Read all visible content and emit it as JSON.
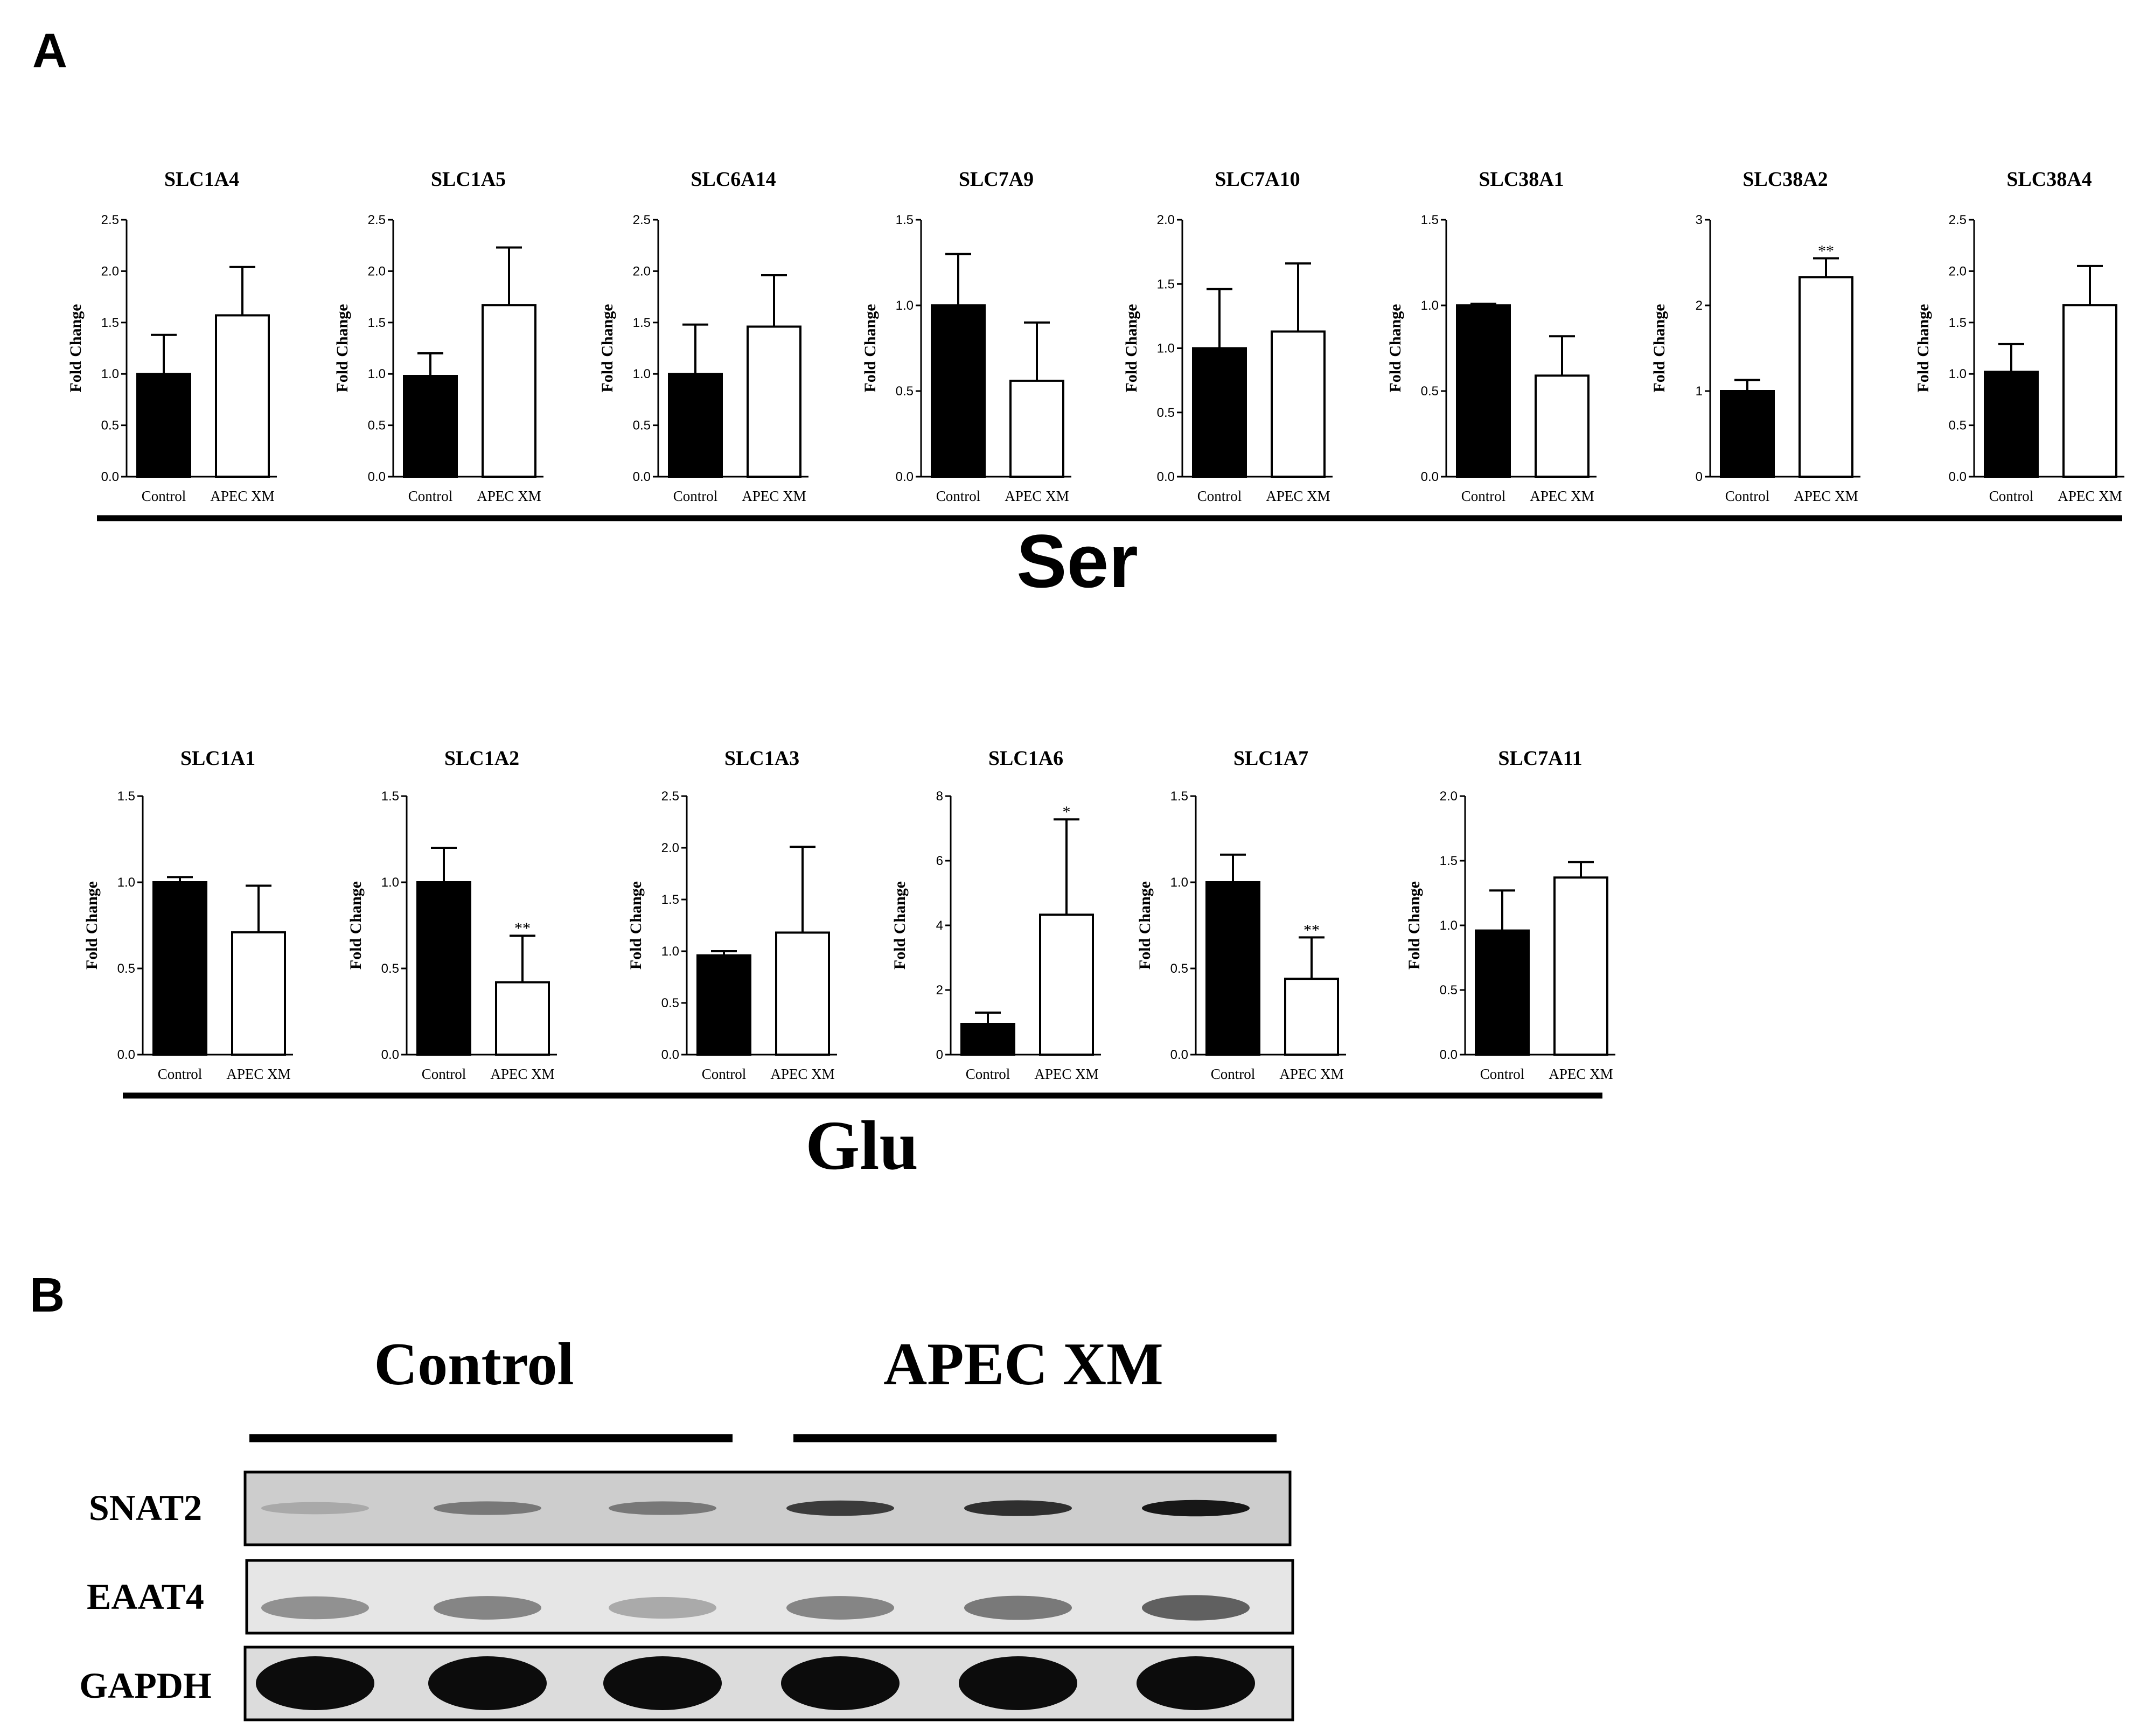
{
  "panels": {
    "a_label": "A",
    "b_label": "B"
  },
  "groups": {
    "ser_label": "Ser",
    "glu_label": "Glu"
  },
  "common": {
    "ylabel": "Fold Change",
    "categories": [
      "Control",
      "APEC XM"
    ],
    "bar_colors": [
      "#000000",
      "#ffffff"
    ]
  },
  "chart_data": [
    {
      "type": "bar",
      "title": "SLC1A4",
      "group": "Ser",
      "ylim": [
        0,
        2.5
      ],
      "yticks": [
        "0.0",
        "0.5",
        "1.0",
        "1.5",
        "2.0",
        "2.5"
      ],
      "categories": [
        "Control",
        "APEC XM"
      ],
      "values": [
        1.0,
        1.57
      ],
      "errors": [
        0.38,
        0.47
      ],
      "significance": [
        "",
        ""
      ]
    },
    {
      "type": "bar",
      "title": "SLC1A5",
      "group": "Ser",
      "ylim": [
        0,
        2.5
      ],
      "yticks": [
        "0.0",
        "0.5",
        "1.0",
        "1.5",
        "2.0",
        "2.5"
      ],
      "categories": [
        "Control",
        "APEC XM"
      ],
      "values": [
        0.98,
        1.67
      ],
      "errors": [
        0.22,
        0.56
      ],
      "significance": [
        "",
        ""
      ]
    },
    {
      "type": "bar",
      "title": "SLC6A14",
      "group": "Ser",
      "ylim": [
        0,
        2.5
      ],
      "yticks": [
        "0.0",
        "0.5",
        "1.0",
        "1.5",
        "2.0",
        "2.5"
      ],
      "categories": [
        "Control",
        "APEC XM"
      ],
      "values": [
        1.0,
        1.46
      ],
      "errors": [
        0.48,
        0.5
      ],
      "significance": [
        "",
        ""
      ]
    },
    {
      "type": "bar",
      "title": "SLC7A9",
      "group": "Ser",
      "ylim": [
        0,
        1.5
      ],
      "yticks": [
        "0.0",
        "0.5",
        "1.0",
        "1.5"
      ],
      "categories": [
        "Control",
        "APEC XM"
      ],
      "values": [
        1.0,
        0.56
      ],
      "errors": [
        0.3,
        0.34
      ],
      "significance": [
        "",
        ""
      ]
    },
    {
      "type": "bar",
      "title": "SLC7A10",
      "group": "Ser",
      "ylim": [
        0,
        2.0
      ],
      "yticks": [
        "0.0",
        "0.5",
        "1.0",
        "1.5",
        "2.0"
      ],
      "categories": [
        "Control",
        "APEC XM"
      ],
      "values": [
        1.0,
        1.13
      ],
      "errors": [
        0.46,
        0.53
      ],
      "significance": [
        "",
        ""
      ]
    },
    {
      "type": "bar",
      "title": "SLC38A1",
      "group": "Ser",
      "ylim": [
        0,
        1.5
      ],
      "yticks": [
        "0.0",
        "0.5",
        "1.0",
        "1.5"
      ],
      "categories": [
        "Control",
        "APEC XM"
      ],
      "values": [
        1.0,
        0.59
      ],
      "errors": [
        0.01,
        0.23
      ],
      "significance": [
        "",
        ""
      ]
    },
    {
      "type": "bar",
      "title": "SLC38A2",
      "group": "Ser",
      "ylim": [
        0,
        3
      ],
      "yticks": [
        "0",
        "1",
        "2",
        "3"
      ],
      "categories": [
        "Control",
        "APEC XM"
      ],
      "values": [
        1.0,
        2.33
      ],
      "errors": [
        0.13,
        0.22
      ],
      "significance": [
        "",
        "**"
      ]
    },
    {
      "type": "bar",
      "title": "SLC38A4",
      "group": "Ser",
      "ylim": [
        0,
        2.5
      ],
      "yticks": [
        "0.0",
        "0.5",
        "1.0",
        "1.5",
        "2.0",
        "2.5"
      ],
      "categories": [
        "Control",
        "APEC XM"
      ],
      "values": [
        1.02,
        1.67
      ],
      "errors": [
        0.27,
        0.38
      ],
      "significance": [
        "",
        ""
      ]
    },
    {
      "type": "bar",
      "title": "SLC1A1",
      "group": "Glu",
      "ylim": [
        0,
        1.5
      ],
      "yticks": [
        "0.0",
        "0.5",
        "1.0",
        "1.5"
      ],
      "categories": [
        "Control",
        "APEC XM"
      ],
      "values": [
        1.0,
        0.71
      ],
      "errors": [
        0.03,
        0.27
      ],
      "significance": [
        "",
        ""
      ]
    },
    {
      "type": "bar",
      "title": "SLC1A2",
      "group": "Glu",
      "ylim": [
        0,
        1.5
      ],
      "yticks": [
        "0.0",
        "0.5",
        "1.0",
        "1.5"
      ],
      "categories": [
        "Control",
        "APEC XM"
      ],
      "values": [
        1.0,
        0.42
      ],
      "errors": [
        0.2,
        0.27
      ],
      "significance": [
        "",
        "**"
      ]
    },
    {
      "type": "bar",
      "title": "SLC1A3",
      "group": "Glu",
      "ylim": [
        0,
        2.5
      ],
      "yticks": [
        "0.0",
        "0.5",
        "1.0",
        "1.5",
        "2.0",
        "2.5"
      ],
      "categories": [
        "Control",
        "APEC XM"
      ],
      "values": [
        0.96,
        1.18
      ],
      "errors": [
        0.04,
        0.83
      ],
      "significance": [
        "",
        ""
      ]
    },
    {
      "type": "bar",
      "title": "SLC1A6",
      "group": "Glu",
      "ylim": [
        0,
        8
      ],
      "yticks": [
        "0",
        "2",
        "4",
        "6",
        "8"
      ],
      "categories": [
        "Control",
        "APEC XM"
      ],
      "values": [
        0.95,
        4.33
      ],
      "errors": [
        0.35,
        2.95
      ],
      "significance": [
        "",
        "*"
      ]
    },
    {
      "type": "bar",
      "title": "SLC1A7",
      "group": "Glu",
      "ylim": [
        0,
        1.5
      ],
      "yticks": [
        "0.0",
        "0.5",
        "1.0",
        "1.5"
      ],
      "categories": [
        "Control",
        "APEC XM"
      ],
      "values": [
        1.0,
        0.44
      ],
      "errors": [
        0.16,
        0.24
      ],
      "significance": [
        "",
        "**"
      ]
    },
    {
      "type": "bar",
      "title": "SLC7A11",
      "group": "Glu",
      "ylim": [
        0,
        2.0
      ],
      "yticks": [
        "0.0",
        "0.5",
        "1.0",
        "1.5",
        "2.0"
      ],
      "categories": [
        "Control",
        "APEC XM"
      ],
      "values": [
        0.96,
        1.37
      ],
      "errors": [
        0.31,
        0.12
      ],
      "significance": [
        "",
        ""
      ]
    }
  ],
  "western_blot": {
    "columns": [
      "Control",
      "APEC XM"
    ],
    "rows": [
      {
        "label": "SNAT2",
        "band_intensity": [
          0.35,
          0.55,
          0.55,
          0.8,
          0.85,
          0.95
        ]
      },
      {
        "label": "EAAT4",
        "band_intensity": [
          0.45,
          0.5,
          0.35,
          0.5,
          0.55,
          0.65
        ]
      },
      {
        "label": "GAPDH",
        "band_intensity": [
          1.0,
          1.0,
          1.0,
          1.0,
          1.0,
          1.0
        ]
      }
    ]
  }
}
